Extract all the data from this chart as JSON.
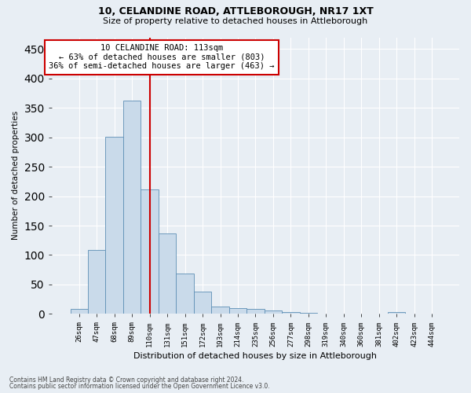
{
  "title1": "10, CELANDINE ROAD, ATTLEBOROUGH, NR17 1XT",
  "title2": "Size of property relative to detached houses in Attleborough",
  "xlabel": "Distribution of detached houses by size in Attleborough",
  "ylabel": "Number of detached properties",
  "footer1": "Contains HM Land Registry data © Crown copyright and database right 2024.",
  "footer2": "Contains public sector information licensed under the Open Government Licence v3.0.",
  "annotation_line1": "10 CELANDINE ROAD: 113sqm",
  "annotation_line2": "← 63% of detached houses are smaller (803)",
  "annotation_line3": "36% of semi-detached houses are larger (463) →",
  "bar_color": "#c9daea",
  "bar_edge_color": "#5e8fb5",
  "vline_color": "#cc0000",
  "annotation_box_edge_color": "#cc0000",
  "annotation_box_face_color": "#ffffff",
  "categories": [
    "26sqm",
    "47sqm",
    "68sqm",
    "89sqm",
    "110sqm",
    "131sqm",
    "151sqm",
    "172sqm",
    "193sqm",
    "214sqm",
    "235sqm",
    "256sqm",
    "277sqm",
    "298sqm",
    "319sqm",
    "340sqm",
    "360sqm",
    "381sqm",
    "402sqm",
    "423sqm",
    "444sqm"
  ],
  "values": [
    8,
    108,
    301,
    362,
    212,
    136,
    68,
    38,
    13,
    10,
    9,
    6,
    3,
    2,
    0,
    0,
    0,
    0,
    3,
    0,
    0
  ],
  "ylim": [
    0,
    470
  ],
  "yticks": [
    0,
    50,
    100,
    150,
    200,
    250,
    300,
    350,
    400,
    450
  ],
  "vline_x_index": 4,
  "background_color": "#e8eef4",
  "grid_color": "#ffffff",
  "figsize": [
    6.0,
    5.0
  ],
  "dpi": 100
}
